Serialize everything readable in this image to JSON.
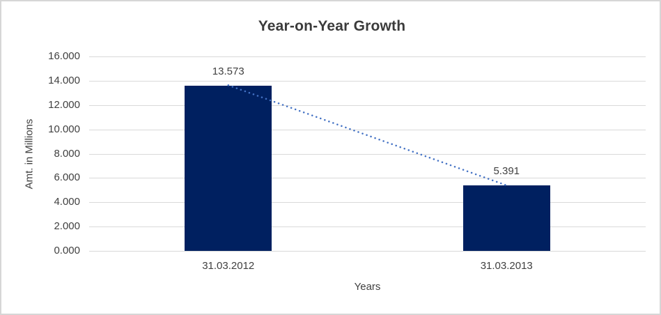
{
  "chart_data": {
    "type": "bar",
    "title": "Year-on-Year Growth",
    "xlabel": "Years",
    "ylabel": "Amt. in Millions",
    "categories": [
      "31.03.2012",
      "31.03.2013"
    ],
    "values": [
      13.573,
      5.391
    ],
    "value_labels": [
      "13.573",
      "5.391"
    ],
    "ylim": [
      0,
      16
    ],
    "ytick_step": 2,
    "ytick_labels": [
      "0.000",
      "2.000",
      "4.000",
      "6.000",
      "8.000",
      "10.000",
      "12.000",
      "14.000",
      "16.000"
    ],
    "grid": true,
    "legend_position": "none",
    "trendline": {
      "style": "dotted",
      "from": {
        "category": "31.03.2012",
        "value": 13.573
      },
      "to": {
        "category": "31.03.2013",
        "value": 5.391
      }
    },
    "colors": {
      "bar": "#002060",
      "trendline": "#4472c4",
      "gridline": "#d9d9d9",
      "axis_text": "#404040",
      "title_text": "#3b3b3b",
      "background": "#ffffff",
      "border": "#d6d6d6"
    }
  }
}
